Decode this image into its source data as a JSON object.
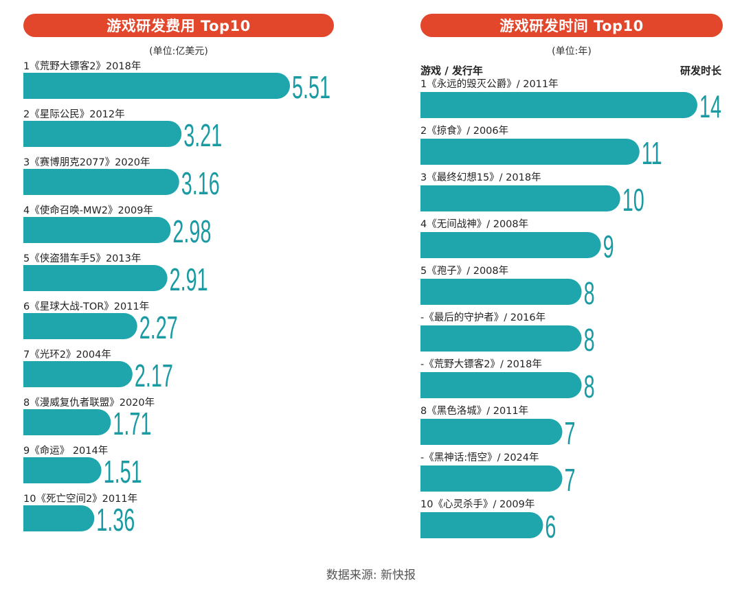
{
  "colors": {
    "bar": "#1fa5ac",
    "value": "#1a9aa2",
    "header": "#e2462b"
  },
  "left": {
    "title": "游戏研发费用 Top10",
    "unit": "(单位:亿美元)"
  },
  "right": {
    "title": "游戏研发时间 Top10",
    "unit": "(单位:年)",
    "col_left": "游戏 / 发行年",
    "col_right": "研发时长"
  },
  "footer": "数据来源: 新快报",
  "chart_data": [
    {
      "type": "bar",
      "title": "游戏研发费用 Top10",
      "ylabel": "(单位:亿美元)",
      "categories": [
        "1《荒野大镖客2》2018年",
        "2《星际公民》2012年",
        "3《赛博朋克2077》2020年",
        "4《使命召唤-MW2》2009年",
        "5《侠盗猎车手5》2013年",
        "6《星球大战-TOR》2011年",
        "7《光环2》2004年",
        "8《漫威复仇者联盟》2020年",
        "9《命运》 2014年",
        "10《死亡空间2》2011年"
      ],
      "values": [
        5.51,
        3.21,
        3.16,
        2.98,
        2.91,
        2.27,
        2.17,
        1.71,
        1.51,
        1.36
      ],
      "labels": [
        "5.51",
        "3.21",
        "3.16",
        "2.98",
        "2.91",
        "2.27",
        "2.17",
        "1.71",
        "1.51",
        "1.36"
      ],
      "xlim": [
        0,
        5.51
      ]
    },
    {
      "type": "bar",
      "title": "游戏研发时间 Top10",
      "ylabel": "(单位:年)",
      "categories": [
        "1《永远的毁灭公爵》/ 2011年",
        "2《掠食》/ 2006年",
        "3《最终幻想15》/ 2018年",
        "4《无间战神》/ 2008年",
        "5《孢子》/ 2008年",
        "-《最后的守护者》/ 2016年",
        "-《荒野大镖客2》/ 2018年",
        "8《黑色洛城》/ 2011年",
        "-《黑神话:悟空》/ 2024年",
        "10《心灵杀手》/ 2009年"
      ],
      "values": [
        14,
        11,
        10,
        9,
        8,
        8,
        8,
        7,
        7,
        6
      ],
      "labels": [
        "14",
        "11",
        "10",
        "9",
        "8",
        "8",
        "8",
        "7",
        "7",
        "6"
      ],
      "xlim": [
        0,
        14
      ]
    }
  ]
}
